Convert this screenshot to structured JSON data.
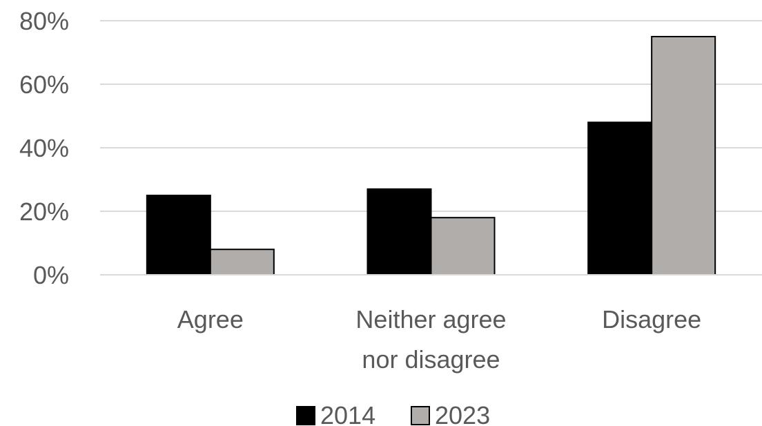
{
  "chart_data": {
    "type": "bar",
    "categories": [
      "Agree",
      "Neither agree nor disagree",
      "Disagree"
    ],
    "category_lines": [
      [
        "Agree"
      ],
      [
        "Neither agree",
        "nor disagree"
      ],
      [
        "Disagree"
      ]
    ],
    "series": [
      {
        "name": "2014",
        "values": [
          25,
          27,
          48
        ],
        "color": "#000000"
      },
      {
        "name": "2023",
        "values": [
          8,
          18,
          75
        ],
        "color": "#b0adab"
      }
    ],
    "ylim": [
      0,
      80
    ],
    "yticks": [
      0,
      20,
      40,
      60,
      80
    ],
    "ytick_labels": [
      "0%",
      "20%",
      "40%",
      "60%",
      "80%"
    ],
    "grid": true,
    "legend_position": "bottom-center",
    "title": "",
    "xlabel": "",
    "ylabel": ""
  }
}
